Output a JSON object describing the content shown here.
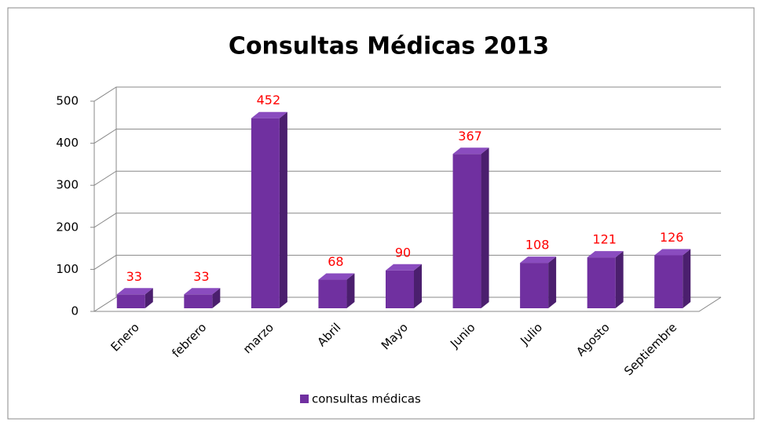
{
  "chart_data": {
    "type": "bar3d",
    "title": "Consultas Médicas 2013",
    "categories": [
      "Enero",
      "febrero",
      "marzo",
      "Abril",
      "Mayo",
      "Junio",
      "Julio",
      "Agosto",
      "Septiembre"
    ],
    "series": [
      {
        "name": "consultas médicas",
        "color": "#7030a0",
        "values": [
          33,
          33,
          452,
          68,
          90,
          367,
          108,
          121,
          126
        ]
      }
    ],
    "ylim": [
      0,
      500
    ],
    "yticks": [
      0,
      100,
      200,
      300,
      400,
      500
    ],
    "grid": true,
    "legend": "bottom"
  }
}
